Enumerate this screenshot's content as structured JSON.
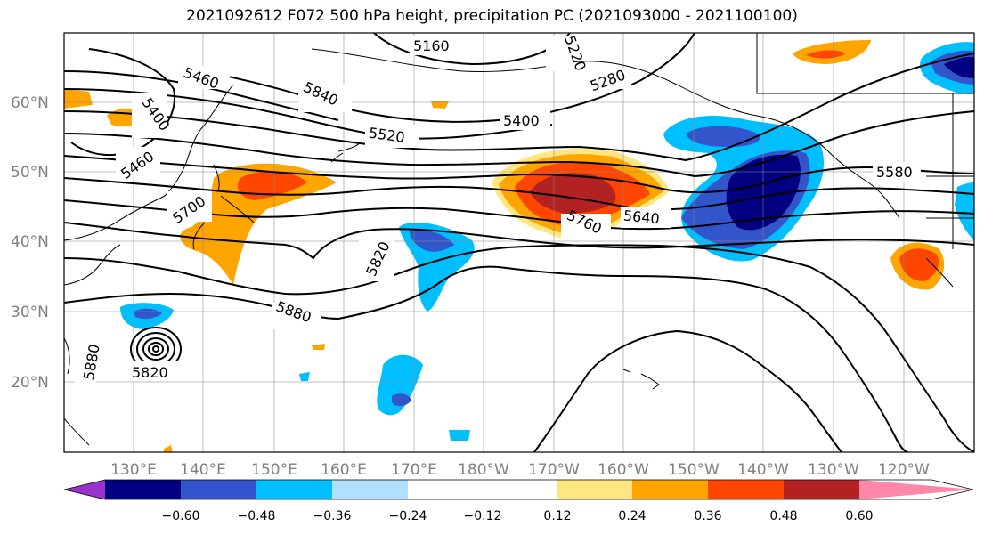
{
  "title": "2021092612 F072 500 hPa height, precipitation PC (2021093000 - 2021100100)",
  "lat_labels": [
    {
      "text": "60°N",
      "lat": 60
    },
    {
      "text": "50°N",
      "lat": 50
    },
    {
      "text": "40°N",
      "lat": 40
    },
    {
      "text": "30°N",
      "lat": 30
    },
    {
      "text": "20°N",
      "lat": 20
    }
  ],
  "lon_labels": [
    {
      "text": "130°E",
      "lon": 130
    },
    {
      "text": "140°E",
      "lon": 140
    },
    {
      "text": "150°E",
      "lon": 150
    },
    {
      "text": "160°E",
      "lon": 160
    },
    {
      "text": "170°E",
      "lon": 170
    },
    {
      "text": "180°W",
      "lon": 180
    },
    {
      "text": "170°W",
      "lon": 190
    },
    {
      "text": "160°W",
      "lon": 200
    },
    {
      "text": "150°W",
      "lon": 210
    },
    {
      "text": "140°W",
      "lon": 220
    },
    {
      "text": "130°W",
      "lon": 230
    },
    {
      "text": "120°W",
      "lon": 240
    }
  ],
  "contour_labels": [
    "5160",
    "5220",
    "5280",
    "5460",
    "5400",
    "5840",
    "5400",
    "5520",
    "5460",
    "5700",
    "5580",
    "5640",
    "5760",
    "5820",
    "5880",
    "5880",
    "5820"
  ],
  "colorbar": {
    "ticks": [
      "−0.60",
      "−0.48",
      "−0.36",
      "−0.24",
      "−0.12",
      "0.12",
      "0.24",
      "0.36",
      "0.48",
      "0.60"
    ],
    "colors": [
      "#9933cc",
      "#000080",
      "#3355cc",
      "#00bfff",
      "#b0e0ff",
      "#ffffff",
      "#ffe680",
      "#ffa500",
      "#ff4500",
      "#b22222",
      "#ff88aa"
    ]
  }
}
